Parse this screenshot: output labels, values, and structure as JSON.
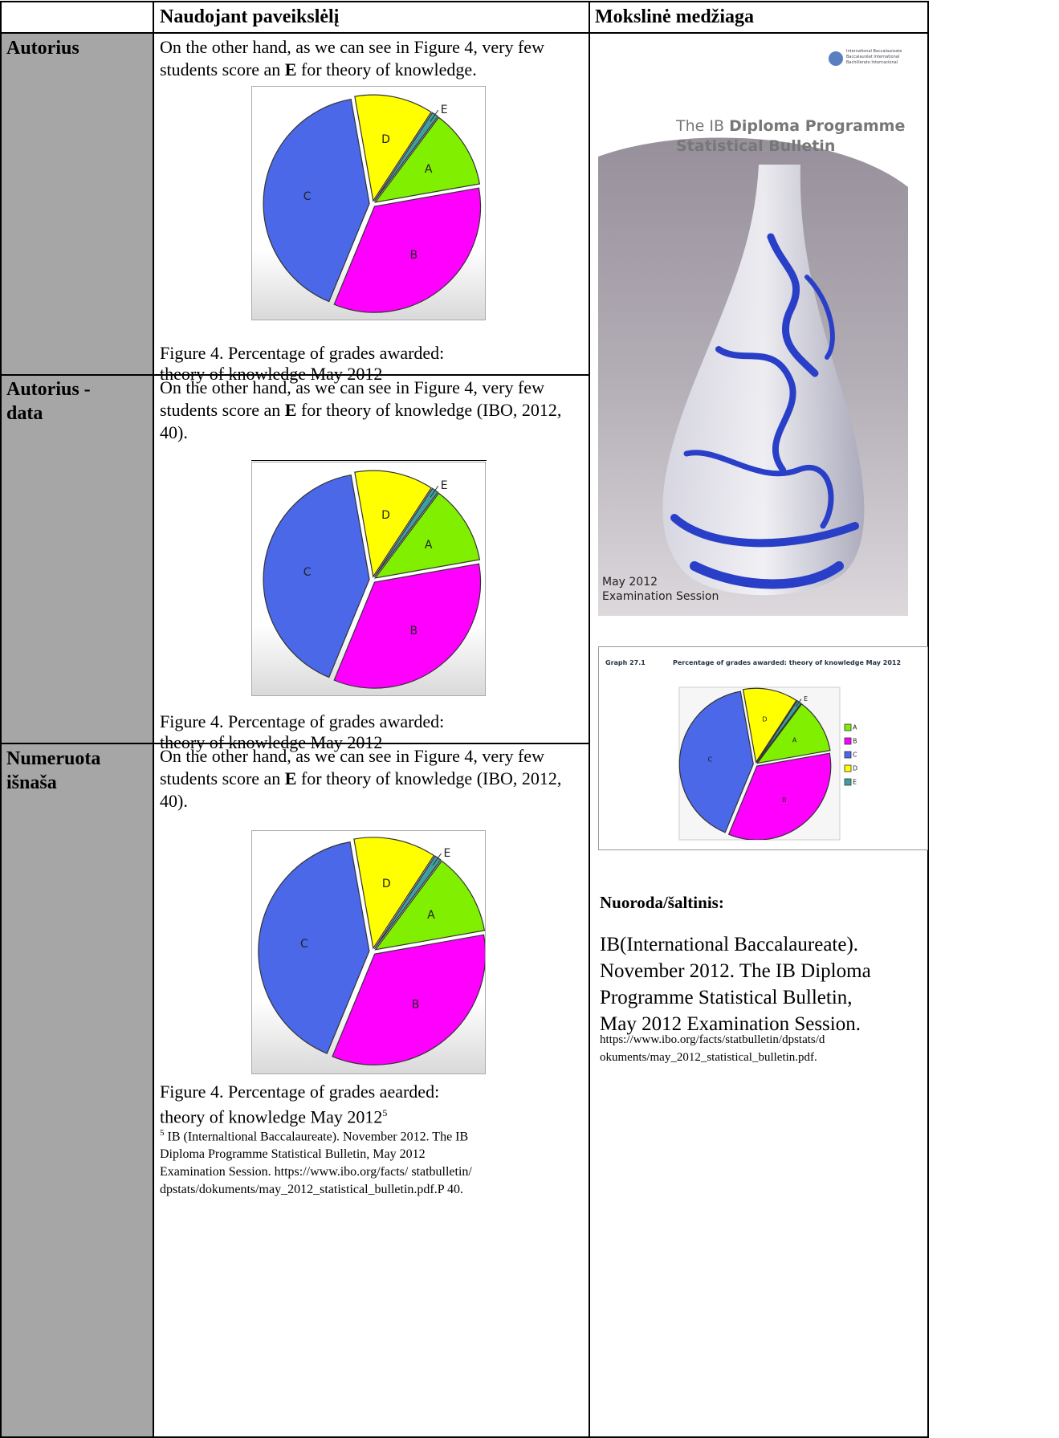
{
  "table": {
    "header": [
      "Naudojant paveikslėlį",
      "Mokslinė medžiaga"
    ],
    "rows": [
      {
        "label_lines": [
          "Autorius"
        ],
        "text_before": "On the other hand, as we can see in Figure 4, very few students score an ",
        "bold": "E",
        "text_after": " for theory of  knowledge.",
        "caption_lines": [
          "Figure 4. Percentage of grades awarded:",
          "theory of  knowledge May 2012"
        ]
      },
      {
        "label_lines": [
          "Autorius -",
          "data"
        ],
        "text_before": "On the other hand, as we can see in Figure 4, very few students score an ",
        "bold": "E",
        "text_after": " for theory of knowledge (IBO, 2012, 40).",
        "caption_lines": [
          "Figure 4. Percentage of grades awarded:",
          "theory of  knowledge May 2012"
        ]
      },
      {
        "label_lines": [
          "Numeruota",
          "išnaša"
        ],
        "text_before": "On the other hand, as we can see in Figure 4, very few students score an ",
        "bold": "E",
        "text_after": " for theory of  knowledge (IBO, 2012, 40).",
        "caption_lines": [
          "Figure 4. Percentage of grades aearded:",
          "theory of knowledge May 2012"
        ],
        "caption_sup": "5",
        "footnote_sup": "5",
        "footnote_lines": [
          "IB (Internaltional Baccalaureate). November 2012. The IB",
          "Diploma Programme Statistical Bulletin, May 2012",
          "Examination Session. https://www.ibo.org/facts/ statbulletin/",
          "dpstats/dokuments/may_2012_statistical_bulletin.pdf.P 40."
        ]
      }
    ]
  },
  "pie": {
    "labels": [
      "D",
      "E",
      "A",
      "B",
      "C"
    ],
    "values": [
      12,
      1,
      12,
      34,
      41
    ],
    "colors": [
      "#ffff00",
      "#3f9f9f",
      "#80f000",
      "#ff00ff",
      "#4a68e8"
    ]
  },
  "cover": {
    "logo_lines": [
      "International Baccalaureate",
      "Baccalauréat International",
      "Bachillerato Internacional"
    ],
    "title_pre": "The IB ",
    "title_bold": "Diploma Programme",
    "subtitle": "Statistical Bulletin",
    "session_lines": [
      "May 2012",
      "Examination Session"
    ]
  },
  "graph": {
    "number": "Graph 27.1",
    "title": "Percentage of grades awarded: theory of knowledge May 2012",
    "legend": [
      "A",
      "B",
      "C",
      "D",
      "E"
    ]
  },
  "source": {
    "heading": "Nuoroda/šaltinis:",
    "lines": [
      "IB(International Baccalaureate).",
      "November 2012. The IB Diploma",
      "Programme Statistical Bulletin,",
      "May 2012 Examination Session."
    ],
    "url_lines": [
      "https://www.ibo.org/facts/statbulletin/dpstats/d",
      "okuments/may_2012_statistical_bulletin.pdf."
    ]
  }
}
